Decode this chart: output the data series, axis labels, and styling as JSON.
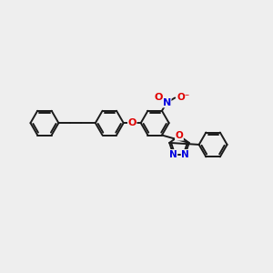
{
  "bg_color": "#eeeeee",
  "bond_color": "#1a1a1a",
  "bond_width": 1.4,
  "atom_colors": {
    "O": "#e00000",
    "N": "#0000e0",
    "C": "#1a1a1a"
  },
  "figsize": [
    3.0,
    3.0
  ],
  "dpi": 100,
  "xlim": [
    0,
    10
  ],
  "ylim": [
    0,
    10
  ],
  "ring_r": 0.52,
  "double_sep": 0.07
}
